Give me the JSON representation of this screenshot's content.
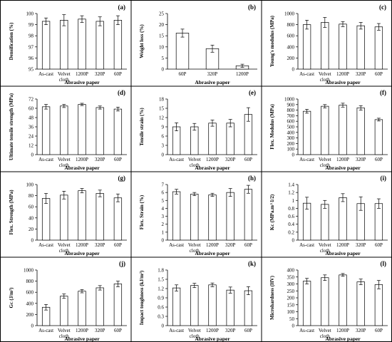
{
  "chart_data": [
    {
      "type": "bar",
      "panel_label": "(a)",
      "categories": [
        "As-cast",
        "Velvet cloth",
        "1200P",
        "320P",
        "60P"
      ],
      "values": [
        99.3,
        99.4,
        99.5,
        99.3,
        99.4
      ],
      "errors": [
        0.3,
        0.5,
        0.3,
        0.4,
        0.4
      ],
      "ylabel": "Densification (%)",
      "xlabel": "Abrasive paper",
      "ylim": [
        95,
        100
      ],
      "yticks": [
        "95",
        "96",
        "97",
        "98",
        "99",
        "100"
      ]
    },
    {
      "type": "bar",
      "panel_label": "(b)",
      "categories": [
        "60P",
        "320P",
        "1200P"
      ],
      "values": [
        16.2,
        9.2,
        1.5
      ],
      "errors": [
        1.8,
        1.6,
        0.7
      ],
      "ylabel": "Weight loss (%)",
      "xlabel": "Abrasive paper",
      "ylim": [
        0,
        25
      ],
      "yticks": [
        "0",
        "5",
        "10",
        "15",
        "20",
        "25"
      ]
    },
    {
      "type": "bar",
      "panel_label": "(c)",
      "categories": [
        "As-cast",
        "Velvet cloth",
        "1200P",
        "320P",
        "60P"
      ],
      "values": [
        800,
        840,
        810,
        780,
        760
      ],
      "errors": [
        80,
        90,
        45,
        60,
        60
      ],
      "ylabel": "Young's modulus (MPa)",
      "xlabel": "Abrasive paper",
      "ylim": [
        0,
        1000
      ],
      "yticks": [
        "0",
        "200",
        "400",
        "600",
        "800",
        "1000"
      ]
    },
    {
      "type": "bar",
      "panel_label": "(d)",
      "categories": [
        "As-cast",
        "Velvet cloth",
        "1200P",
        "320P",
        "60P"
      ],
      "values": [
        62,
        63,
        65,
        61,
        59
      ],
      "errors": [
        3,
        2,
        1.5,
        2,
        2.5
      ],
      "ylabel": "Ultimate tensile strength (MPa)",
      "xlabel": "Abrasive paper",
      "ylim": [
        0,
        72
      ],
      "yticks": [
        "0",
        "12",
        "24",
        "36",
        "48",
        "60",
        "72"
      ]
    },
    {
      "type": "bar",
      "panel_label": "(e)",
      "categories": [
        "As-cast",
        "Velvet cloth",
        "1200P",
        "320P",
        "60P"
      ],
      "values": [
        9,
        9,
        10.2,
        10.2,
        13
      ],
      "errors": [
        1.3,
        1.1,
        1.0,
        1.2,
        2.2
      ],
      "ylabel": "Tensile strain (%)",
      "xlabel": "Abrasive paper",
      "ylim": [
        0,
        18
      ],
      "yticks": [
        "0",
        "3",
        "6",
        "9",
        "12",
        "15",
        "18"
      ]
    },
    {
      "type": "bar",
      "panel_label": "(f)",
      "categories": [
        "As-cast",
        "Velvet cloth",
        "1200P",
        "320P",
        "60P"
      ],
      "values": [
        780,
        870,
        890,
        840,
        630
      ],
      "errors": [
        35,
        30,
        35,
        40,
        25
      ],
      "ylabel": "Flex. Modulus (MPa)",
      "xlabel": "Abrasive paper",
      "ylim": [
        0,
        1000
      ],
      "yticks": [
        "0",
        "100",
        "200",
        "300",
        "400",
        "500",
        "600",
        "700",
        "800",
        "900",
        "1000"
      ]
    },
    {
      "type": "bar",
      "panel_label": "(g)",
      "categories": [
        "As-cast",
        "Velvet cloth",
        "1200P",
        "320P",
        "60P"
      ],
      "values": [
        75,
        81,
        89,
        84,
        76
      ],
      "errors": [
        9,
        7,
        4,
        6,
        7
      ],
      "ylabel": "Flex. Strength (MPa)",
      "xlabel": "Abrasive paper",
      "ylim": [
        0,
        100
      ],
      "yticks": [
        "0",
        "20",
        "40",
        "60",
        "80",
        "100"
      ]
    },
    {
      "type": "bar",
      "panel_label": "(h)",
      "categories": [
        "As-cast",
        "Velvet cloth",
        "1200P",
        "320P",
        "60P"
      ],
      "values": [
        6.1,
        5.8,
        5.7,
        6.0,
        6.4
      ],
      "errors": [
        0.3,
        0.2,
        0.2,
        0.5,
        0.5
      ],
      "ylabel": "Flex. Strain (%)",
      "xlabel": "Abrasive paper",
      "ylim": [
        0,
        7
      ],
      "yticks": [
        "0",
        "1",
        "2",
        "3",
        "4",
        "5",
        "6",
        "7"
      ]
    },
    {
      "type": "bar",
      "panel_label": "(i)",
      "categories": [
        "As-cast",
        "Velvet cloth",
        "1200P",
        "320P",
        "60P"
      ],
      "values": [
        0.93,
        0.9,
        1.07,
        0.92,
        0.92
      ],
      "errors": [
        0.15,
        0.1,
        0.1,
        0.17,
        0.12
      ],
      "ylabel": "Kᴄ (MPa.m^1/2)",
      "xlabel": "Abrasive paper",
      "ylim": [
        0,
        1.4
      ],
      "yticks": [
        "0",
        "0.2",
        "0.4",
        "0.6",
        "0.8",
        "1",
        "1.2",
        "1.4"
      ]
    },
    {
      "type": "bar",
      "panel_label": "(j)",
      "categories": [
        "As-cast",
        "Velvet cloth",
        "1200P",
        "320P",
        "60P"
      ],
      "values": [
        330,
        530,
        620,
        680,
        750
      ],
      "errors": [
        50,
        40,
        30,
        40,
        50
      ],
      "ylabel": "Gᴄ (J/m²)",
      "xlabel": "Abrasive paper",
      "ylim": [
        0,
        1000
      ],
      "yticks": [
        "0",
        "200",
        "400",
        "600",
        "800",
        "1000"
      ]
    },
    {
      "type": "bar",
      "panel_label": "(k)",
      "categories": [
        "As-cast",
        "Velvet cloth",
        "1200P",
        "320P",
        "60P"
      ],
      "values": [
        1.22,
        1.3,
        1.32,
        1.15,
        1.13
      ],
      "errors": [
        0.1,
        0.07,
        0.06,
        0.1,
        0.13
      ],
      "ylabel": "Impact toughness (kJ/m²)",
      "xlabel": "Abrasive paper",
      "ylim": [
        0,
        1.8
      ],
      "yticks": [
        "0",
        "0.3",
        "0.6",
        "0.9",
        "1.2",
        "1.5",
        "1.8"
      ]
    },
    {
      "type": "bar",
      "panel_label": "(l)",
      "categories": [
        "As-cast",
        "Velvet cloth",
        "1200P",
        "320P",
        "60P"
      ],
      "values": [
        320,
        345,
        365,
        315,
        295
      ],
      "errors": [
        20,
        20,
        10,
        20,
        30
      ],
      "ylabel": "Microhardness (HV)",
      "xlabel": "Abrasive paper",
      "ylim": [
        0,
        400
      ],
      "yticks": [
        "0",
        "50",
        "100",
        "150",
        "200",
        "250",
        "300",
        "350",
        "400"
      ]
    }
  ]
}
